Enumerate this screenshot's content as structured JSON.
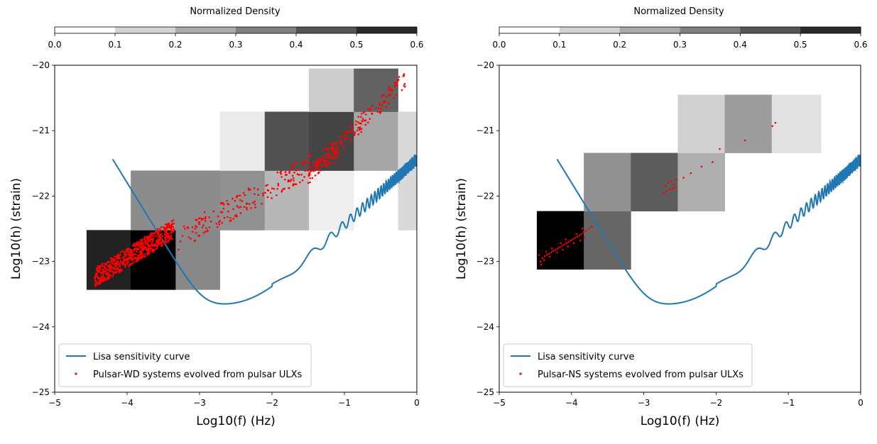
{
  "colorbar": {
    "title": "Normalized Density",
    "ticks": [
      0.0,
      0.1,
      0.2,
      0.3,
      0.4,
      0.5,
      0.6
    ],
    "tick_labels": [
      "0.0",
      "0.1",
      "0.2",
      "0.3",
      "0.4",
      "0.5",
      "0.6"
    ]
  },
  "colors": {
    "curve": "#1f77b4",
    "points": "#ff0000"
  },
  "chart_data": [
    {
      "type": "heatmap",
      "title": "",
      "xlabel": "Log10(f) (Hz)",
      "ylabel": "Log10(h) (strain)",
      "xlim": [
        -5,
        0
      ],
      "ylim": [
        -25,
        -20
      ],
      "xticks": [
        -5,
        -4,
        -3,
        -2,
        -1,
        0
      ],
      "yticks": [
        -25,
        -24,
        -23,
        -22,
        -21,
        -20
      ],
      "legend_loc": "lower-left",
      "legend": {
        "curve_label": "Lisa sensitivity curve",
        "points_label": "Pulsar-WD systems evolved from pulsar ULXs"
      },
      "density_bins": [
        {
          "x0": -4.56,
          "x1": -3.95,
          "y0": -23.43,
          "y1": -22.52,
          "value": 0.52
        },
        {
          "x0": -3.95,
          "x1": -3.33,
          "y0": -23.43,
          "y1": -22.52,
          "value": 0.6
        },
        {
          "x0": -3.33,
          "x1": -2.72,
          "y0": -23.43,
          "y1": -22.52,
          "value": 0.28
        },
        {
          "x0": -3.95,
          "x1": -3.33,
          "y0": -22.52,
          "y1": -21.61,
          "value": 0.27
        },
        {
          "x0": -3.33,
          "x1": -2.72,
          "y0": -22.52,
          "y1": -21.61,
          "value": 0.27
        },
        {
          "x0": -2.72,
          "x1": -2.1,
          "y0": -22.52,
          "y1": -21.61,
          "value": 0.26
        },
        {
          "x0": -2.1,
          "x1": -1.49,
          "y0": -22.52,
          "y1": -21.61,
          "value": 0.17
        },
        {
          "x0": -1.49,
          "x1": -0.87,
          "y0": -22.52,
          "y1": -21.61,
          "value": 0.04
        },
        {
          "x0": -0.26,
          "x1": 0.0,
          "y0": -22.52,
          "y1": -21.61,
          "value": 0.09
        },
        {
          "x0": -2.72,
          "x1": -2.1,
          "y0": -21.61,
          "y1": -20.71,
          "value": 0.05
        },
        {
          "x0": -2.1,
          "x1": -1.49,
          "y0": -21.61,
          "y1": -20.71,
          "value": 0.41
        },
        {
          "x0": -1.49,
          "x1": -0.87,
          "y0": -21.61,
          "y1": -20.71,
          "value": 0.44
        },
        {
          "x0": -0.87,
          "x1": -0.26,
          "y0": -21.61,
          "y1": -20.71,
          "value": 0.21
        },
        {
          "x0": -0.26,
          "x1": 0.0,
          "y0": -21.61,
          "y1": -20.71,
          "value": 0.09
        },
        {
          "x0": -1.49,
          "x1": -0.87,
          "y0": -20.71,
          "y1": -20.05,
          "value": 0.12
        },
        {
          "x0": -0.87,
          "x1": -0.26,
          "y0": -20.71,
          "y1": -20.05,
          "value": 0.37
        }
      ],
      "scatter_groups": [
        {
          "x0": -4.45,
          "x1": -3.35,
          "y0": -23.25,
          "y1": -22.5,
          "n": 650,
          "jitter": 0.15
        },
        {
          "x0": -3.3,
          "x1": -1.1,
          "y0": -22.65,
          "y1": -21.3,
          "n": 220,
          "jitter": 0.18
        },
        {
          "x0": -1.5,
          "x1": -0.15,
          "y0": -21.7,
          "y1": -20.2,
          "n": 170,
          "jitter": 0.14
        }
      ]
    },
    {
      "type": "heatmap",
      "title": "",
      "xlabel": "Log10(f) (Hz)",
      "ylabel": "Log10(h) (strain)",
      "xlim": [
        -5,
        0
      ],
      "ylim": [
        -25,
        -20
      ],
      "xticks": [
        -5,
        -4,
        -3,
        -2,
        -1,
        0
      ],
      "yticks": [
        -25,
        -24,
        -23,
        -22,
        -21,
        -20
      ],
      "legend_loc": "lower-left",
      "legend": {
        "curve_label": "Lisa sensitivity curve",
        "points_label": "Pulsar-NS systems evolved from pulsar ULXs"
      },
      "density_bins": [
        {
          "x0": -4.48,
          "x1": -3.83,
          "y0": -23.12,
          "y1": -22.23,
          "value": 0.6
        },
        {
          "x0": -3.83,
          "x1": -3.18,
          "y0": -23.12,
          "y1": -22.23,
          "value": 0.36
        },
        {
          "x0": -3.83,
          "x1": -3.18,
          "y0": -22.23,
          "y1": -21.34,
          "value": 0.26
        },
        {
          "x0": -3.18,
          "x1": -2.53,
          "y0": -22.23,
          "y1": -21.34,
          "value": 0.38
        },
        {
          "x0": -2.53,
          "x1": -1.88,
          "y0": -22.23,
          "y1": -21.34,
          "value": 0.19
        },
        {
          "x0": -2.53,
          "x1": -1.88,
          "y0": -21.34,
          "y1": -20.45,
          "value": 0.11
        },
        {
          "x0": -1.88,
          "x1": -1.23,
          "y0": -21.34,
          "y1": -20.45,
          "value": 0.23
        },
        {
          "x0": -1.23,
          "x1": -0.55,
          "y0": -21.34,
          "y1": -20.45,
          "value": 0.07
        }
      ],
      "scatter_points": [
        [
          -4.43,
          -23.0
        ],
        [
          -4.4,
          -22.95
        ],
        [
          -4.37,
          -22.92
        ],
        [
          -4.34,
          -22.9
        ],
        [
          -4.31,
          -22.88
        ],
        [
          -4.28,
          -22.86
        ],
        [
          -4.25,
          -22.84
        ],
        [
          -4.22,
          -22.82
        ],
        [
          -4.19,
          -22.8
        ],
        [
          -4.16,
          -22.78
        ],
        [
          -4.13,
          -22.76
        ],
        [
          -4.1,
          -22.74
        ],
        [
          -4.07,
          -22.72
        ],
        [
          -4.04,
          -22.7
        ],
        [
          -4.01,
          -22.68
        ],
        [
          -3.98,
          -22.66
        ],
        [
          -3.95,
          -22.64
        ],
        [
          -3.92,
          -22.62
        ],
        [
          -3.89,
          -22.6
        ],
        [
          -3.86,
          -22.58
        ],
        [
          -3.83,
          -22.55
        ],
        [
          -3.8,
          -22.53
        ],
        [
          -3.76,
          -22.5
        ],
        [
          -3.72,
          -22.47
        ],
        [
          -4.42,
          -23.05
        ],
        [
          -4.38,
          -22.98
        ],
        [
          -4.3,
          -22.93
        ],
        [
          -4.2,
          -22.86
        ],
        [
          -4.12,
          -22.82
        ],
        [
          -4.05,
          -22.77
        ],
        [
          -3.97,
          -22.72
        ],
        [
          -3.88,
          -22.68
        ],
        [
          -3.82,
          -22.64
        ],
        [
          -4.45,
          -22.9
        ],
        [
          -4.35,
          -22.85
        ],
        [
          -4.27,
          -22.8
        ],
        [
          -4.15,
          -22.72
        ],
        [
          -4.08,
          -22.66
        ],
        [
          -3.93,
          -22.58
        ],
        [
          -3.85,
          -22.5
        ],
        [
          -2.72,
          -21.95
        ],
        [
          -2.68,
          -21.92
        ],
        [
          -2.64,
          -21.9
        ],
        [
          -2.6,
          -21.88
        ],
        [
          -2.57,
          -21.87
        ],
        [
          -2.7,
          -21.84
        ],
        [
          -2.66,
          -21.8
        ],
        [
          -2.62,
          -21.78
        ],
        [
          -2.58,
          -21.82
        ],
        [
          -2.55,
          -21.75
        ],
        [
          -2.45,
          -21.72
        ],
        [
          -2.35,
          -21.65
        ],
        [
          -2.2,
          -21.55
        ],
        [
          -2.05,
          -21.48
        ],
        [
          -1.95,
          -21.28
        ],
        [
          -1.6,
          -21.15
        ],
        [
          -1.22,
          -20.93
        ],
        [
          -1.18,
          -20.88
        ]
      ]
    }
  ]
}
